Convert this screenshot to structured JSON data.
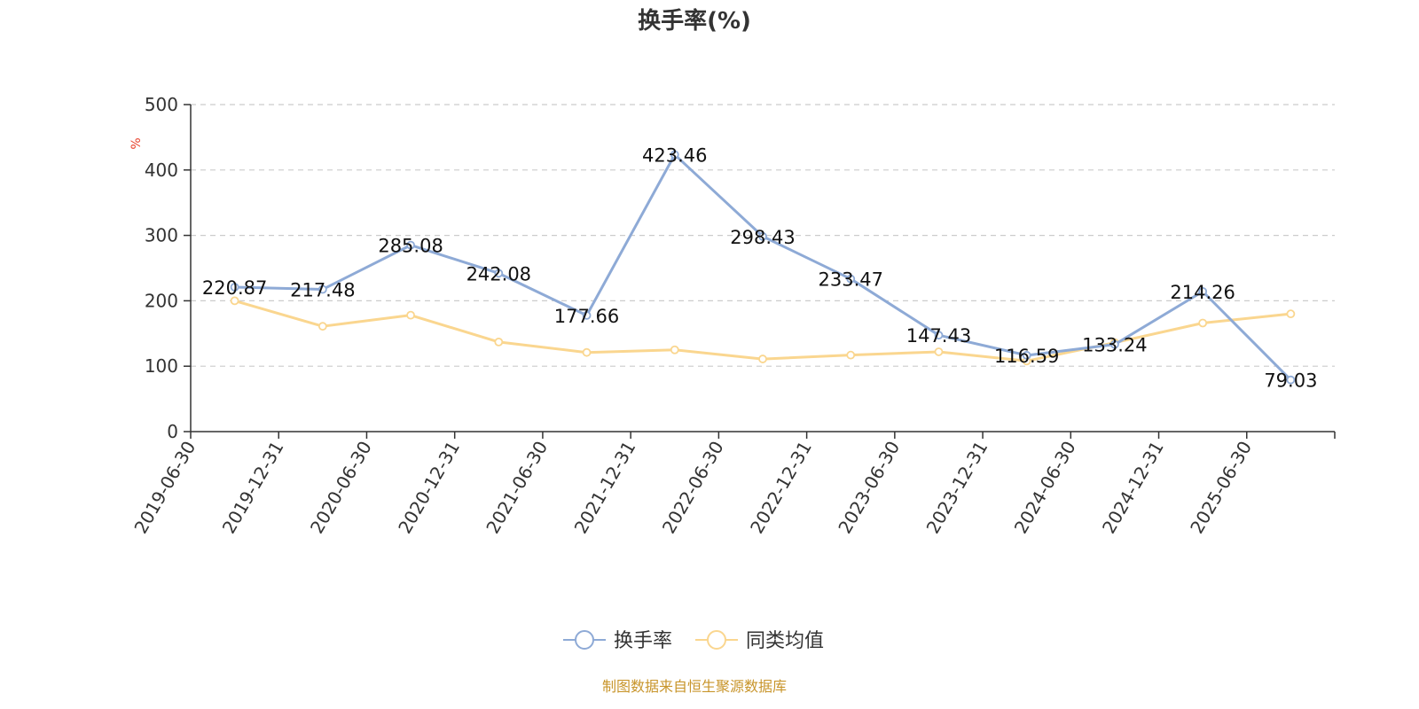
{
  "chart_data": {
    "type": "line",
    "title": "换手率(%)",
    "ylabel": "%",
    "xlabel": "",
    "ylim": [
      0,
      500
    ],
    "yticks": [
      0,
      100,
      200,
      300,
      400,
      500
    ],
    "grid": true,
    "legend_position": "bottom",
    "categories": [
      "2019-06-30",
      "2019-12-31",
      "2020-06-30",
      "2020-12-31",
      "2021-06-30",
      "2021-12-31",
      "2022-06-30",
      "2022-12-31",
      "2023-06-30",
      "2023-12-31",
      "2024-06-30",
      "2024-12-31",
      "2025-06-30"
    ],
    "series": [
      {
        "name": "换手率",
        "color": "#8eaad6",
        "values": [
          220.87,
          217.48,
          285.08,
          242.08,
          177.66,
          423.46,
          298.43,
          233.47,
          147.43,
          116.59,
          133.24,
          214.26,
          79.03
        ],
        "labels": [
          "220.87",
          "217.48",
          "285.08",
          "242.08",
          "177.66",
          "423.46",
          "298.43",
          "233.47",
          "147.43",
          "116.59",
          "133.24",
          "214.26",
          "79.03"
        ]
      },
      {
        "name": "同类均值",
        "color": "#fad68f",
        "values": [
          200,
          161,
          178,
          137,
          121,
          125,
          111,
          117,
          122,
          108,
          136,
          166,
          180
        ]
      }
    ]
  },
  "source_text": "制图数据来自恒生聚源数据库",
  "colors": {
    "axis": "#333333",
    "grid": "#cccccc",
    "ylabel": "#e8412b",
    "source": "#c8952b"
  }
}
